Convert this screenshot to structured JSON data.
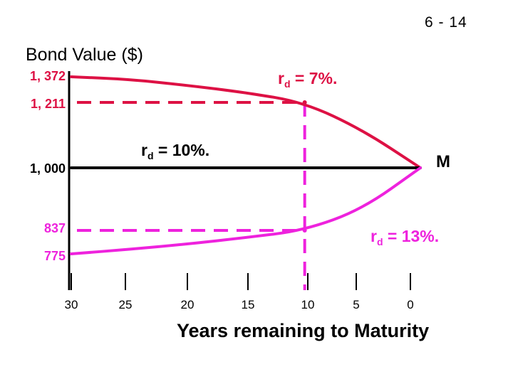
{
  "slide_number": "6 - 14",
  "chart_data": {
    "type": "line",
    "title": "Bond Value ($)",
    "xlabel": "Years remaining to Maturity",
    "ylabel": "Bond Value ($)",
    "x_ticks": [
      "30",
      "25",
      "20",
      "15",
      "10",
      "5",
      "0"
    ],
    "y_ticks": [
      "1, 372",
      "1, 211",
      "1, 000",
      "837",
      "775"
    ],
    "series": [
      {
        "name": "rd = 7%.",
        "color": "#dd1144",
        "points": [
          [
            30,
            1372
          ],
          [
            25,
            1356
          ],
          [
            20,
            1318
          ],
          [
            15,
            1273
          ],
          [
            10,
            1211
          ],
          [
            5,
            1123
          ],
          [
            0,
            1000
          ]
        ]
      },
      {
        "name": "rd = 10%.",
        "color": "#000000",
        "points": [
          [
            30,
            1000
          ],
          [
            0,
            1000
          ]
        ]
      },
      {
        "name": "rd = 13%.",
        "color": "#ee22dd",
        "points": [
          [
            30,
            775
          ],
          [
            25,
            787
          ],
          [
            20,
            801
          ],
          [
            15,
            818
          ],
          [
            10,
            837
          ],
          [
            5,
            892
          ],
          [
            0,
            1000
          ]
        ]
      }
    ],
    "annotations": [
      {
        "label": "1, 211",
        "x": 10,
        "y": 1211,
        "color": "#dd1144"
      },
      {
        "label": "837",
        "x": 10,
        "y": 837,
        "color": "#ee22dd"
      },
      {
        "label": "M",
        "x": 0,
        "y": 1000
      }
    ],
    "label_rd7": {
      "r": "r",
      "sub": "d",
      "rest": " = 7%."
    },
    "label_rd10": {
      "r": "r",
      "sub": "d",
      "rest": " = 10%."
    },
    "label_rd13": {
      "r": "r",
      "sub": "d",
      "rest": " = 13%."
    },
    "label_m": "M"
  }
}
